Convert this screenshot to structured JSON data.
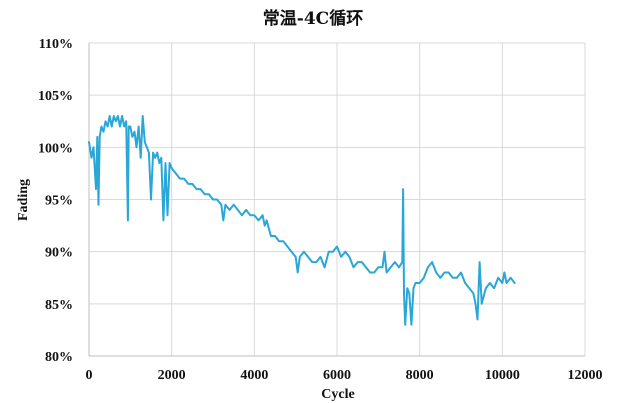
{
  "chart_data": {
    "type": "line",
    "title": "常温-4C循环",
    "xlabel": "Cycle",
    "ylabel": "Fading",
    "xlim": [
      0,
      12000
    ],
    "ylim": [
      0.8,
      1.1
    ],
    "x_ticks": [
      0,
      2000,
      4000,
      6000,
      8000,
      10000,
      12000
    ],
    "x_tick_labels": [
      "0",
      "2000",
      "4000",
      "6000",
      "8000",
      "10000",
      "12000"
    ],
    "y_ticks": [
      0.8,
      0.85,
      0.9,
      0.95,
      1.0,
      1.05,
      1.1
    ],
    "y_tick_labels": [
      "80%",
      "85%",
      "90%",
      "95%",
      "100%",
      "105%",
      "110%"
    ],
    "grid": true,
    "legend": "none",
    "series_color": "#2aa7d7",
    "series": [
      {
        "points": [
          [
            0,
            1.005
          ],
          [
            60,
            0.99
          ],
          [
            110,
            1.0
          ],
          [
            170,
            0.96
          ],
          [
            200,
            1.01
          ],
          [
            230,
            0.945
          ],
          [
            260,
            1.01
          ],
          [
            300,
            1.02
          ],
          [
            350,
            1.015
          ],
          [
            400,
            1.025
          ],
          [
            450,
            1.02
          ],
          [
            500,
            1.03
          ],
          [
            550,
            1.02
          ],
          [
            600,
            1.03
          ],
          [
            650,
            1.025
          ],
          [
            700,
            1.03
          ],
          [
            750,
            1.02
          ],
          [
            800,
            1.03
          ],
          [
            850,
            1.02
          ],
          [
            900,
            1.025
          ],
          [
            940,
            0.93
          ],
          [
            960,
            1.02
          ],
          [
            1000,
            1.02
          ],
          [
            1050,
            1.01
          ],
          [
            1100,
            1.015
          ],
          [
            1150,
            1.0
          ],
          [
            1200,
            1.02
          ],
          [
            1250,
            0.99
          ],
          [
            1300,
            1.03
          ],
          [
            1350,
            1.005
          ],
          [
            1400,
            1.0
          ],
          [
            1450,
            0.995
          ],
          [
            1500,
            0.95
          ],
          [
            1550,
            0.995
          ],
          [
            1600,
            0.99
          ],
          [
            1650,
            0.995
          ],
          [
            1700,
            0.985
          ],
          [
            1750,
            0.99
          ],
          [
            1800,
            0.93
          ],
          [
            1850,
            0.985
          ],
          [
            1900,
            0.935
          ],
          [
            1950,
            0.985
          ],
          [
            2000,
            0.98
          ],
          [
            2100,
            0.975
          ],
          [
            2200,
            0.97
          ],
          [
            2300,
            0.97
          ],
          [
            2400,
            0.965
          ],
          [
            2500,
            0.965
          ],
          [
            2600,
            0.96
          ],
          [
            2700,
            0.96
          ],
          [
            2800,
            0.955
          ],
          [
            2900,
            0.955
          ],
          [
            3000,
            0.95
          ],
          [
            3100,
            0.95
          ],
          [
            3200,
            0.945
          ],
          [
            3250,
            0.93
          ],
          [
            3300,
            0.945
          ],
          [
            3400,
            0.94
          ],
          [
            3500,
            0.945
          ],
          [
            3600,
            0.94
          ],
          [
            3700,
            0.935
          ],
          [
            3800,
            0.94
          ],
          [
            3900,
            0.935
          ],
          [
            4000,
            0.935
          ],
          [
            4100,
            0.93
          ],
          [
            4200,
            0.935
          ],
          [
            4250,
            0.925
          ],
          [
            4300,
            0.93
          ],
          [
            4400,
            0.915
          ],
          [
            4500,
            0.915
          ],
          [
            4600,
            0.91
          ],
          [
            4700,
            0.91
          ],
          [
            4800,
            0.905
          ],
          [
            4900,
            0.9
          ],
          [
            5000,
            0.895
          ],
          [
            5050,
            0.88
          ],
          [
            5100,
            0.895
          ],
          [
            5200,
            0.9
          ],
          [
            5300,
            0.895
          ],
          [
            5400,
            0.89
          ],
          [
            5500,
            0.89
          ],
          [
            5600,
            0.895
          ],
          [
            5700,
            0.885
          ],
          [
            5800,
            0.9
          ],
          [
            5900,
            0.9
          ],
          [
            6000,
            0.905
          ],
          [
            6100,
            0.895
          ],
          [
            6200,
            0.9
          ],
          [
            6300,
            0.895
          ],
          [
            6400,
            0.885
          ],
          [
            6500,
            0.89
          ],
          [
            6600,
            0.89
          ],
          [
            6700,
            0.885
          ],
          [
            6800,
            0.88
          ],
          [
            6900,
            0.88
          ],
          [
            7000,
            0.885
          ],
          [
            7100,
            0.885
          ],
          [
            7150,
            0.9
          ],
          [
            7200,
            0.88
          ],
          [
            7300,
            0.885
          ],
          [
            7400,
            0.89
          ],
          [
            7500,
            0.885
          ],
          [
            7580,
            0.89
          ],
          [
            7600,
            0.96
          ],
          [
            7620,
            0.86
          ],
          [
            7650,
            0.83
          ],
          [
            7700,
            0.865
          ],
          [
            7750,
            0.86
          ],
          [
            7800,
            0.83
          ],
          [
            7850,
            0.865
          ],
          [
            7900,
            0.87
          ],
          [
            8000,
            0.87
          ],
          [
            8100,
            0.875
          ],
          [
            8200,
            0.885
          ],
          [
            8300,
            0.89
          ],
          [
            8400,
            0.88
          ],
          [
            8500,
            0.875
          ],
          [
            8600,
            0.88
          ],
          [
            8700,
            0.88
          ],
          [
            8800,
            0.875
          ],
          [
            8900,
            0.875
          ],
          [
            9000,
            0.88
          ],
          [
            9100,
            0.87
          ],
          [
            9200,
            0.865
          ],
          [
            9300,
            0.86
          ],
          [
            9350,
            0.85
          ],
          [
            9400,
            0.835
          ],
          [
            9450,
            0.89
          ],
          [
            9500,
            0.85
          ],
          [
            9600,
            0.865
          ],
          [
            9700,
            0.87
          ],
          [
            9800,
            0.865
          ],
          [
            9900,
            0.875
          ],
          [
            10000,
            0.87
          ],
          [
            10050,
            0.88
          ],
          [
            10100,
            0.87
          ],
          [
            10200,
            0.875
          ],
          [
            10300,
            0.87
          ]
        ]
      }
    ]
  }
}
